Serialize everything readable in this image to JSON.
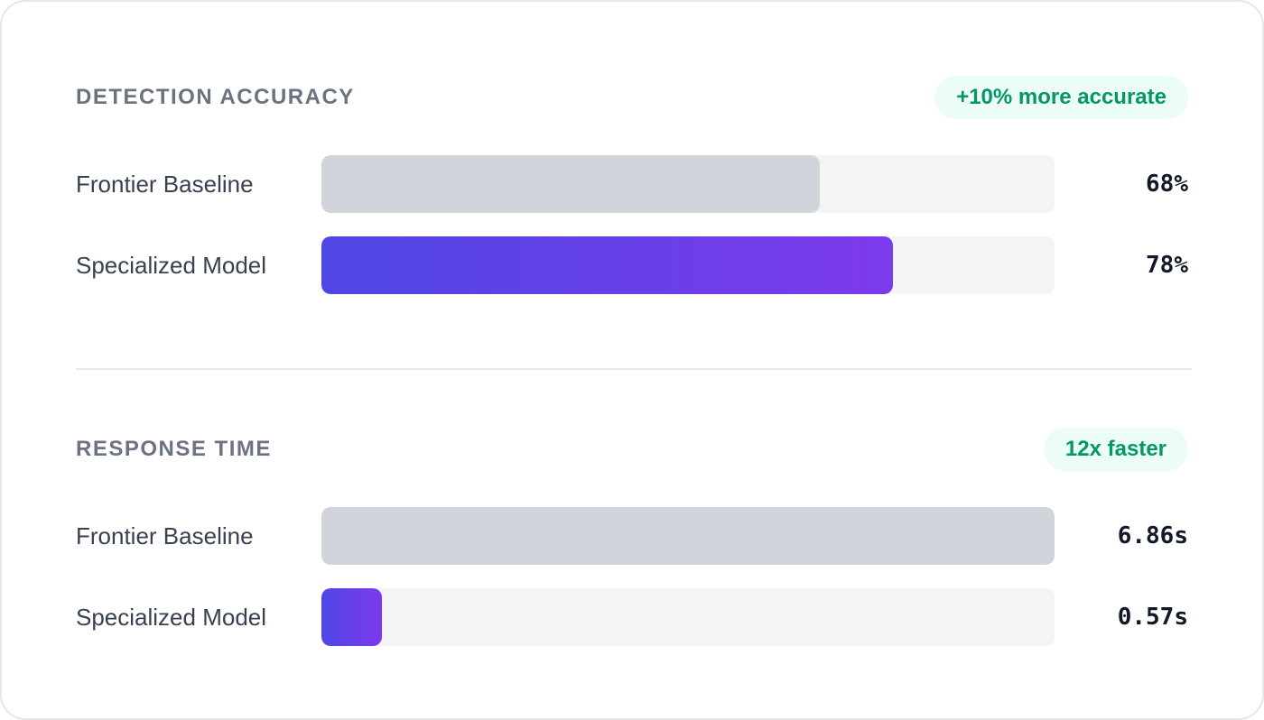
{
  "chart_data": [
    {
      "type": "bar",
      "title": "DETECTION ACCURACY",
      "annotation": "+10% more accurate",
      "categories": [
        "Frontier Baseline",
        "Specialized Model"
      ],
      "values": [
        68,
        78
      ],
      "value_labels": [
        "68%",
        "78%"
      ],
      "colors": [
        [
          "#d1d5db"
        ],
        [
          "#4f46e5",
          "#7c3aed"
        ]
      ],
      "xlim": [
        0,
        100
      ]
    },
    {
      "type": "bar",
      "title": "RESPONSE TIME",
      "annotation": "12x faster",
      "categories": [
        "Frontier Baseline",
        "Specialized Model"
      ],
      "values": [
        6.86,
        0.57
      ],
      "value_labels": [
        "6.86s",
        "0.57s"
      ],
      "colors": [
        [
          "#d1d5db"
        ],
        [
          "#4f46e5",
          "#7c3aed"
        ]
      ],
      "xlim": [
        0,
        6.86
      ]
    }
  ]
}
